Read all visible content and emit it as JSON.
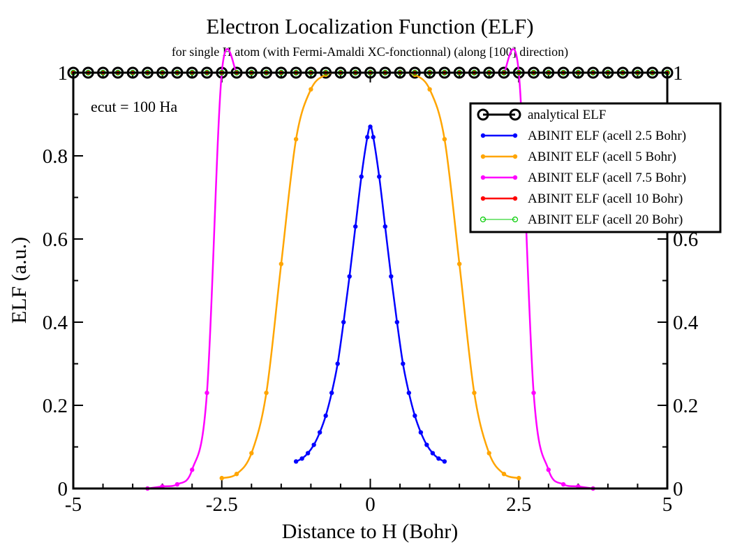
{
  "chart_data": {
    "type": "line",
    "title": "Electron Localization Function (ELF)",
    "subtitle": "for single H atom (with Fermi-Amaldi XC-fonctionnal) (along [100] direction)",
    "xlabel": "Distance to H (Bohr)",
    "ylabel": "ELF (a.u.)",
    "xlim": [
      -5,
      5
    ],
    "ylim": [
      0,
      1
    ],
    "x_ticks": [
      "-5",
      "-2.5",
      "0",
      "2.5",
      "5"
    ],
    "y_ticks_left": [
      "0",
      "0.2",
      "0.4",
      "0.6",
      "0.8",
      "1"
    ],
    "y_ticks_right": [
      "0",
      "0.2",
      "0.4",
      "0.6",
      "0.8",
      "1"
    ],
    "grid": false,
    "legend_position": "top-right",
    "annotation": "ecut = 100 Ha",
    "colors": {
      "analytical": "#000000",
      "acell_2_5": "#0000ff",
      "acell_5": "#ffa500",
      "acell_7_5": "#ff00ff",
      "acell_10": "#ff0000",
      "acell_20": "#00cc00"
    },
    "series": [
      {
        "name": "analytical ELF",
        "marker": "open-circle",
        "color": "#000000",
        "x": [
          -5.0,
          -4.75,
          -4.5,
          -4.25,
          -4.0,
          -3.75,
          -3.5,
          -3.25,
          -3.0,
          -2.75,
          -2.5,
          -2.25,
          -2.0,
          -1.75,
          -1.5,
          -1.25,
          -1.0,
          -0.75,
          -0.5,
          -0.25,
          0.0,
          0.25,
          0.5,
          0.75,
          1.0,
          1.25,
          1.5,
          1.75,
          2.0,
          2.25,
          2.5,
          2.75,
          3.0,
          3.25,
          3.5,
          3.75,
          4.0,
          4.25,
          4.5,
          4.75,
          5.0
        ],
        "y": [
          1,
          1,
          1,
          1,
          1,
          1,
          1,
          1,
          1,
          1,
          1,
          1,
          1,
          1,
          1,
          1,
          1,
          1,
          1,
          1,
          1,
          1,
          1,
          1,
          1,
          1,
          1,
          1,
          1,
          1,
          1,
          1,
          1,
          1,
          1,
          1,
          1,
          1,
          1,
          1,
          1
        ]
      },
      {
        "name": "ABINIT ELF (acell 2.5 Bohr)",
        "marker": "dot",
        "color": "#0000ff",
        "x": [
          -1.25,
          -1.15,
          -1.05,
          -0.95,
          -0.85,
          -0.75,
          -0.65,
          -0.55,
          -0.45,
          -0.35,
          -0.25,
          -0.15,
          -0.05,
          0.0,
          0.05,
          0.15,
          0.25,
          0.35,
          0.45,
          0.55,
          0.65,
          0.75,
          0.85,
          0.95,
          1.05,
          1.15,
          1.25
        ],
        "y": [
          0.065,
          0.072,
          0.085,
          0.105,
          0.135,
          0.175,
          0.23,
          0.3,
          0.4,
          0.51,
          0.63,
          0.75,
          0.845,
          0.87,
          0.845,
          0.75,
          0.63,
          0.51,
          0.4,
          0.3,
          0.23,
          0.175,
          0.135,
          0.105,
          0.085,
          0.072,
          0.065
        ]
      },
      {
        "name": "ABINIT ELF (acell 5 Bohr)",
        "marker": "dot",
        "color": "#ffa500",
        "x": [
          -2.5,
          -2.25,
          -2.0,
          -1.75,
          -1.5,
          -1.25,
          -1.0,
          -0.75,
          -0.5,
          -0.25,
          0.0,
          0.25,
          0.5,
          0.75,
          1.0,
          1.25,
          1.5,
          1.75,
          2.0,
          2.25,
          2.5
        ],
        "y": [
          0.025,
          0.035,
          0.085,
          0.23,
          0.54,
          0.84,
          0.96,
          0.995,
          1.0,
          1.0,
          1.0,
          1.0,
          1.0,
          0.995,
          0.96,
          0.84,
          0.54,
          0.23,
          0.085,
          0.035,
          0.025
        ]
      },
      {
        "name": "ABINIT ELF (acell 7.5 Bohr)",
        "marker": "dot",
        "color": "#ff00ff",
        "x": [
          -3.75,
          -3.5,
          -3.25,
          -3.0,
          -2.75,
          -2.5,
          -2.25,
          2.25,
          2.5,
          2.75,
          3.0,
          3.25,
          3.5,
          3.75
        ],
        "y": [
          0.0,
          0.005,
          0.01,
          0.045,
          0.23,
          1.0,
          1.0,
          1.0,
          1.0,
          0.23,
          0.045,
          0.01,
          0.005,
          0.0
        ]
      },
      {
        "name": "ABINIT ELF (acell 10 Bohr)",
        "marker": "dot",
        "color": "#ff0000",
        "x": [
          -5.0,
          -4.75,
          -4.5,
          -4.25,
          -4.0,
          -3.75,
          -3.5,
          -3.25,
          -3.0,
          -2.75,
          -2.5,
          -2.25,
          -2.0,
          -1.75,
          -1.5,
          -1.25,
          -1.0,
          -0.75,
          -0.5,
          -0.25,
          0.0,
          0.25,
          0.5,
          0.75,
          1.0,
          1.25,
          1.5,
          1.75,
          2.0,
          2.25,
          2.5,
          2.75,
          3.0,
          3.25,
          3.5,
          3.75,
          4.0,
          4.25,
          4.5,
          4.75,
          5.0
        ],
        "y": [
          1,
          1,
          1,
          1,
          1,
          1,
          1,
          1,
          1,
          1,
          1,
          1,
          1,
          1,
          1,
          1,
          1,
          1,
          1,
          1,
          1,
          1,
          1,
          1,
          1,
          1,
          1,
          1,
          1,
          1,
          1,
          1,
          1,
          1,
          1,
          1,
          1,
          1,
          1,
          1,
          1
        ]
      },
      {
        "name": "ABINIT ELF (acell 20 Bohr)",
        "marker": "open-circle-small",
        "color": "#00cc00",
        "x": [
          -5.0,
          -4.75,
          -4.5,
          -4.25,
          -4.0,
          -3.75,
          -3.5,
          -3.25,
          -3.0,
          -2.75,
          -2.5,
          -2.25,
          -2.0,
          -1.75,
          -1.5,
          -1.25,
          -1.0,
          -0.75,
          -0.5,
          -0.25,
          0.0,
          0.25,
          0.5,
          0.75,
          1.0,
          1.25,
          1.5,
          1.75,
          2.0,
          2.25,
          2.5,
          2.75,
          3.0,
          3.25,
          3.5,
          3.75,
          4.0,
          4.25,
          4.5,
          4.75,
          5.0
        ],
        "y": [
          1,
          1,
          1,
          1,
          1,
          1,
          1,
          1,
          1,
          1,
          1,
          1,
          1,
          1,
          1,
          1,
          1,
          1,
          1,
          1,
          1,
          1,
          1,
          1,
          1,
          1,
          1,
          1,
          1,
          1,
          1,
          1,
          1,
          1,
          1,
          1,
          1,
          1,
          1,
          1,
          1
        ]
      }
    ]
  }
}
